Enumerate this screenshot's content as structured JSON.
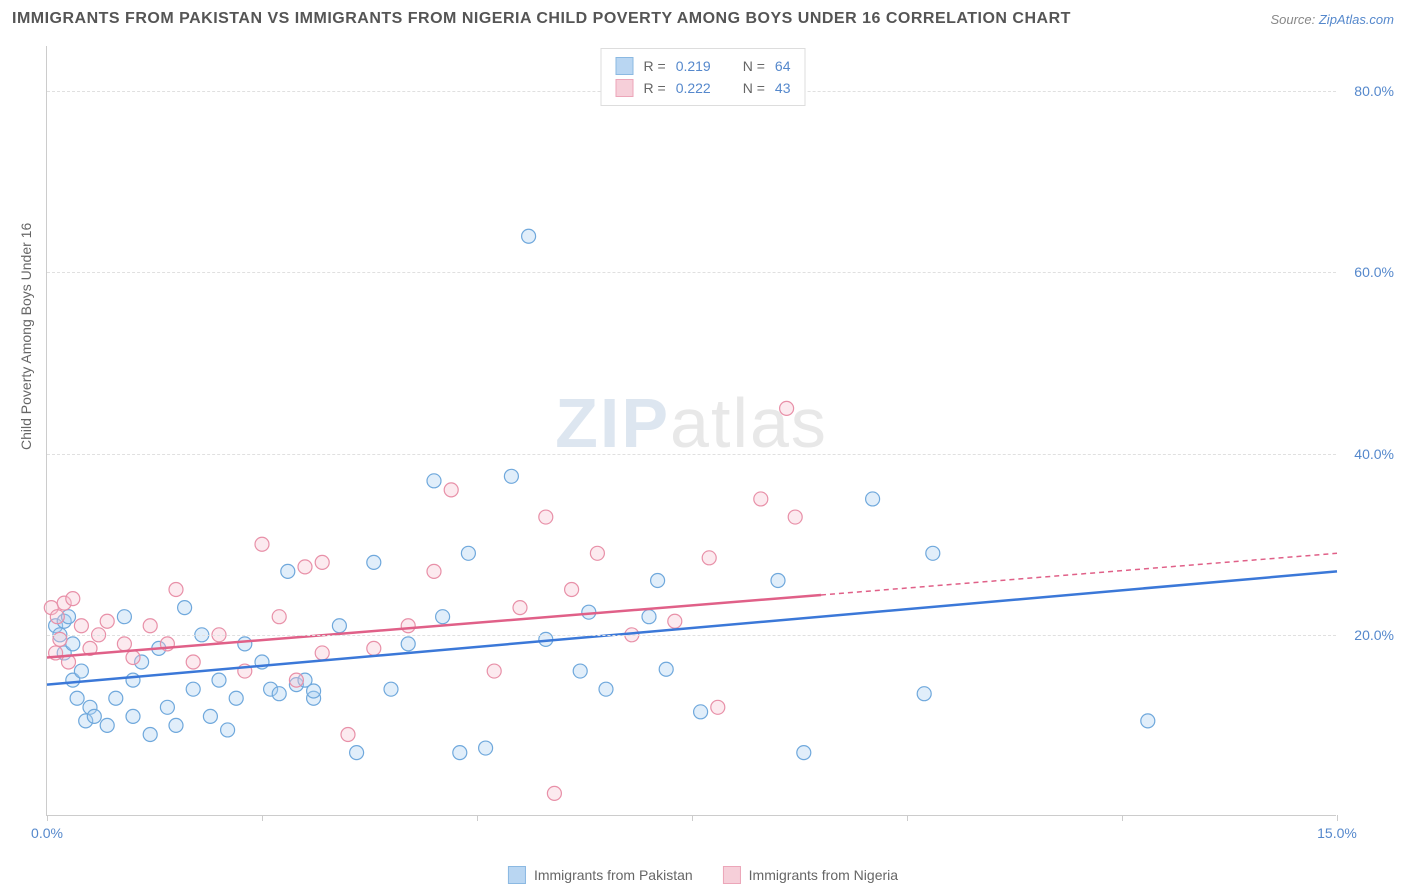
{
  "title": "IMMIGRANTS FROM PAKISTAN VS IMMIGRANTS FROM NIGERIA CHILD POVERTY AMONG BOYS UNDER 16 CORRELATION CHART",
  "source_prefix": "Source: ",
  "source_link": "ZipAtlas.com",
  "ylabel": "Child Poverty Among Boys Under 16",
  "watermark_zip": "ZIP",
  "watermark_atlas": "atlas",
  "chart": {
    "type": "scatter",
    "xlim": [
      0,
      15
    ],
    "ylim": [
      0,
      85
    ],
    "xticks": [
      0,
      2.5,
      5,
      7.5,
      10,
      12.5,
      15
    ],
    "xtick_labels_shown": {
      "0": "0.0%",
      "15": "15.0%"
    },
    "yticks": [
      20,
      40,
      60,
      80
    ],
    "ytick_labels": [
      "20.0%",
      "40.0%",
      "60.0%",
      "80.0%"
    ],
    "background_color": "#ffffff",
    "grid_color": "#e0e0e0",
    "marker_radius": 7,
    "marker_stroke_width": 1.2,
    "fill_opacity": 0.35,
    "trend_line_width": 2.5
  },
  "series": [
    {
      "name": "Immigrants from Pakistan",
      "color_stroke": "#6fa8dc",
      "color_fill": "#a8cdf0",
      "trend_color": "#3b78d8",
      "R": "0.219",
      "N": "64",
      "trend": {
        "x1": 0,
        "y1": 14.5,
        "x2": 15,
        "y2": 27,
        "solid_until_x": 15
      },
      "points": [
        [
          0.1,
          21
        ],
        [
          0.15,
          20
        ],
        [
          0.2,
          18
        ],
        [
          0.2,
          21.5
        ],
        [
          0.3,
          15
        ],
        [
          0.35,
          13
        ],
        [
          0.4,
          16
        ],
        [
          0.45,
          10.5
        ],
        [
          0.5,
          12
        ],
        [
          0.55,
          11
        ],
        [
          0.3,
          19
        ],
        [
          0.7,
          10
        ],
        [
          0.8,
          13
        ],
        [
          0.9,
          22
        ],
        [
          1.0,
          11
        ],
        [
          1.0,
          15
        ],
        [
          1.1,
          17
        ],
        [
          1.2,
          9
        ],
        [
          1.3,
          18.5
        ],
        [
          1.4,
          12
        ],
        [
          1.5,
          10
        ],
        [
          1.6,
          23
        ],
        [
          1.7,
          14
        ],
        [
          1.8,
          20
        ],
        [
          1.9,
          11
        ],
        [
          2.0,
          15
        ],
        [
          2.1,
          9.5
        ],
        [
          2.2,
          13
        ],
        [
          2.3,
          19
        ],
        [
          2.5,
          17
        ],
        [
          2.6,
          14
        ],
        [
          2.7,
          13.5
        ],
        [
          2.8,
          27
        ],
        [
          2.9,
          14.5
        ],
        [
          3.0,
          15
        ],
        [
          3.1,
          13
        ],
        [
          3.1,
          13.8
        ],
        [
          3.4,
          21
        ],
        [
          3.6,
          7
        ],
        [
          3.8,
          28
        ],
        [
          4.0,
          14
        ],
        [
          4.2,
          19
        ],
        [
          4.5,
          37
        ],
        [
          4.6,
          22
        ],
        [
          4.8,
          7
        ],
        [
          4.9,
          29
        ],
        [
          5.1,
          7.5
        ],
        [
          5.4,
          37.5
        ],
        [
          5.6,
          64
        ],
        [
          5.8,
          19.5
        ],
        [
          6.2,
          16
        ],
        [
          6.3,
          22.5
        ],
        [
          6.5,
          14
        ],
        [
          7.0,
          22
        ],
        [
          7.2,
          16.2
        ],
        [
          7.1,
          26
        ],
        [
          7.6,
          11.5
        ],
        [
          8.5,
          26
        ],
        [
          8.8,
          7
        ],
        [
          9.6,
          35
        ],
        [
          10.2,
          13.5
        ],
        [
          10.3,
          29
        ],
        [
          12.8,
          10.5
        ],
        [
          0.25,
          22
        ]
      ]
    },
    {
      "name": "Immigrants from Nigeria",
      "color_stroke": "#e890a8",
      "color_fill": "#f5c4d0",
      "trend_color": "#e06088",
      "R": "0.222",
      "N": "43",
      "trend": {
        "x1": 0,
        "y1": 17.5,
        "x2": 15,
        "y2": 29,
        "solid_until_x": 9
      },
      "points": [
        [
          0.05,
          23
        ],
        [
          0.1,
          18
        ],
        [
          0.12,
          22
        ],
        [
          0.15,
          19.5
        ],
        [
          0.2,
          23.5
        ],
        [
          0.25,
          17
        ],
        [
          0.3,
          24
        ],
        [
          0.4,
          21
        ],
        [
          0.5,
          18.5
        ],
        [
          0.6,
          20
        ],
        [
          0.7,
          21.5
        ],
        [
          0.9,
          19
        ],
        [
          1.0,
          17.5
        ],
        [
          1.2,
          21
        ],
        [
          1.4,
          19
        ],
        [
          1.5,
          25
        ],
        [
          1.7,
          17
        ],
        [
          2.0,
          20
        ],
        [
          2.3,
          16
        ],
        [
          2.5,
          30
        ],
        [
          2.7,
          22
        ],
        [
          2.9,
          15
        ],
        [
          3.2,
          28
        ],
        [
          3.2,
          18
        ],
        [
          3.5,
          9
        ],
        [
          3.8,
          18.5
        ],
        [
          4.2,
          21
        ],
        [
          4.5,
          27
        ],
        [
          4.7,
          36
        ],
        [
          5.2,
          16
        ],
        [
          5.5,
          23
        ],
        [
          5.8,
          33
        ],
        [
          5.9,
          2.5
        ],
        [
          6.1,
          25
        ],
        [
          6.4,
          29
        ],
        [
          6.8,
          20
        ],
        [
          7.3,
          21.5
        ],
        [
          7.7,
          28.5
        ],
        [
          8.3,
          35
        ],
        [
          8.6,
          45
        ],
        [
          8.7,
          33
        ],
        [
          7.8,
          12
        ],
        [
          3.0,
          27.5
        ]
      ]
    }
  ],
  "legend_top": {
    "r_label": "R =",
    "n_label": "N ="
  },
  "legend_bottom": {
    "items": [
      "Immigrants from Pakistan",
      "Immigrants from Nigeria"
    ]
  }
}
